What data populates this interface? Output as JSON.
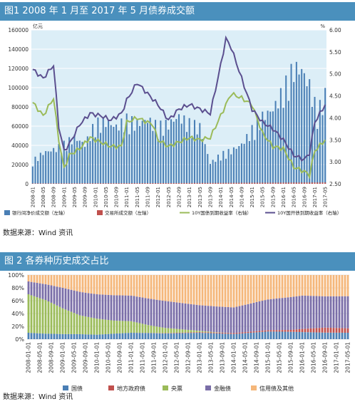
{
  "chart1": {
    "title": "图1  2008 年 1 月至 2017 年 5 月债券成交额",
    "left_unit": "亿元",
    "right_unit": "%",
    "source": "数据来源：Wind 资讯",
    "left_ticks": [
      "0",
      "20000",
      "40000",
      "60000",
      "80000",
      "100000",
      "120000",
      "140000",
      "160000"
    ],
    "right_ticks": [
      "2.50",
      "3.00",
      "3.50",
      "4.00",
      "4.50",
      "5.00",
      "5.50",
      "6.00"
    ],
    "x_ticks": [
      "2008-01",
      "2008-05",
      "2008-09",
      "2009-01",
      "2009-05",
      "2009-09",
      "2010-01",
      "2010-05",
      "2010-09",
      "2011-01",
      "2011-05",
      "2011-09",
      "2012-01",
      "2012-05",
      "2012-09",
      "2013-01",
      "2013-05",
      "2013-09",
      "2014-01",
      "2014-05",
      "2014-09",
      "2015-01",
      "2015-05",
      "2015-09",
      "2016-01",
      "2016-05",
      "2016-09",
      "2017-01",
      "2017-05"
    ],
    "legend": [
      "银行间净价成交额（左轴）",
      "交易所成交额（左轴）",
      "10Y国债到期收益率（右轴）",
      "10Y国开债到期收益率（右轴）"
    ],
    "colors": {
      "bank": "#4a7fb5",
      "exchange": "#c0504d",
      "gov": "#9bbb59",
      "cdb": "#5b4f8f",
      "grid": "#ffffff",
      "bg": "#dceef7"
    }
  },
  "chart2": {
    "title": "图 2 各券种历史成交占比",
    "source": "数据来源：Wind 资讯",
    "y_ticks": [
      "0%",
      "20%",
      "40%",
      "60%",
      "80%",
      "100%"
    ],
    "x_ticks": [
      "2008-01-01",
      "2008-05-01",
      "2008-09-01",
      "2009-01-01",
      "2009-05-01",
      "2009-09-01",
      "2010-01-01",
      "2010-05-01",
      "2010-09-01",
      "2011-01-01",
      "2011-05-01",
      "2011-09-01",
      "2012-01-01",
      "2012-05-01",
      "2012-09-01",
      "2013-01-01",
      "2013-05-01",
      "2013-09-01",
      "2014-01-01",
      "2014-05-01",
      "2014-09-01",
      "2015-01-01",
      "2015-05-01",
      "2015-09-01",
      "2016-01-01",
      "2016-05-01",
      "2016-09-01",
      "2017-01-01",
      "2017-05-01"
    ],
    "legend": [
      "国债",
      "地方政府债",
      "央票",
      "金融债",
      "信用债及其他"
    ],
    "colors": {
      "gov": "#4a7fb5",
      "local": "#c0504d",
      "cb": "#9bbb59",
      "fin": "#7a6ea8",
      "credit": "#f5b77a"
    }
  },
  "chart_data": [
    {
      "type": "bar",
      "title": "图1  2008 年 1 月至 2017 年 5 月债券成交额",
      "x_start": "2008-01",
      "x_end": "2017-05",
      "xlabel": "",
      "ylabel": "亿元",
      "ylim": [
        0,
        160000
      ],
      "y2label": "%",
      "y2lim": [
        2.5,
        6.0
      ],
      "series": [
        {
          "name": "银行间净价成交额（左轴）",
          "type": "bar",
          "axis": "left",
          "anchors": [
            [
              0,
              22000
            ],
            [
              4,
              30000
            ],
            [
              8,
              33000
            ],
            [
              12,
              38000
            ],
            [
              16,
              45000
            ],
            [
              20,
              38000
            ],
            [
              24,
              58000
            ],
            [
              28,
              60000
            ],
            [
              32,
              55000
            ],
            [
              36,
              62000
            ],
            [
              40,
              58000
            ],
            [
              44,
              62000
            ],
            [
              48,
              55000
            ],
            [
              52,
              58000
            ],
            [
              56,
              65000
            ],
            [
              60,
              58000
            ],
            [
              64,
              55000
            ],
            [
              68,
              20000
            ],
            [
              72,
              28000
            ],
            [
              76,
              32000
            ],
            [
              80,
              38000
            ],
            [
              84,
              52000
            ],
            [
              88,
              65000
            ],
            [
              92,
              72000
            ],
            [
              96,
              90000
            ],
            [
              100,
              112000
            ],
            [
              103,
              110000
            ],
            [
              106,
              95000
            ],
            [
              109,
              68000
            ],
            [
              112,
              86000
            ]
          ]
        },
        {
          "name": "交易所成交额（左轴）",
          "type": "bar",
          "axis": "left",
          "anchors": [
            [
              0,
              400
            ],
            [
              56,
              800
            ],
            [
              112,
              1500
            ]
          ]
        },
        {
          "name": "10Y国债到期收益率（右轴）",
          "type": "line",
          "axis": "right",
          "anchors": [
            [
              0,
              4.35
            ],
            [
              4,
              4.05
            ],
            [
              8,
              4.45
            ],
            [
              10,
              3.5
            ],
            [
              12,
              2.85
            ],
            [
              14,
              3.15
            ],
            [
              18,
              3.3
            ],
            [
              22,
              3.55
            ],
            [
              26,
              3.45
            ],
            [
              30,
              3.35
            ],
            [
              34,
              3.35
            ],
            [
              36,
              3.9
            ],
            [
              40,
              4.0
            ],
            [
              44,
              3.9
            ],
            [
              46,
              3.85
            ],
            [
              48,
              3.5
            ],
            [
              52,
              3.35
            ],
            [
              56,
              3.45
            ],
            [
              60,
              3.55
            ],
            [
              64,
              3.5
            ],
            [
              68,
              3.55
            ],
            [
              72,
              4.05
            ],
            [
              76,
              4.55
            ],
            [
              80,
              4.45
            ],
            [
              84,
              4.3
            ],
            [
              88,
              3.65
            ],
            [
              92,
              3.35
            ],
            [
              96,
              3.3
            ],
            [
              100,
              2.88
            ],
            [
              104,
              2.78
            ],
            [
              106,
              2.7
            ],
            [
              108,
              3.25
            ],
            [
              112,
              3.5
            ]
          ]
        },
        {
          "name": "10Y国开债到期收益率（右轴）",
          "type": "line",
          "axis": "right",
          "anchors": [
            [
              0,
              5.1
            ],
            [
              4,
              4.9
            ],
            [
              8,
              5.2
            ],
            [
              10,
              3.8
            ],
            [
              12,
              3.25
            ],
            [
              14,
              3.4
            ],
            [
              18,
              3.85
            ],
            [
              22,
              4.1
            ],
            [
              26,
              4.05
            ],
            [
              30,
              3.95
            ],
            [
              34,
              4.1
            ],
            [
              36,
              4.4
            ],
            [
              40,
              4.8
            ],
            [
              44,
              4.55
            ],
            [
              48,
              4.3
            ],
            [
              52,
              3.95
            ],
            [
              56,
              4.2
            ],
            [
              60,
              4.3
            ],
            [
              64,
              4.2
            ],
            [
              68,
              4.1
            ],
            [
              72,
              5.2
            ],
            [
              74,
              5.8
            ],
            [
              76,
              5.6
            ],
            [
              80,
              4.9
            ],
            [
              84,
              4.2
            ],
            [
              88,
              3.9
            ],
            [
              92,
              3.75
            ],
            [
              96,
              3.5
            ],
            [
              100,
              3.15
            ],
            [
              104,
              3.05
            ],
            [
              106,
              3.2
            ],
            [
              108,
              3.9
            ],
            [
              110,
              4.1
            ],
            [
              112,
              4.3
            ]
          ]
        }
      ]
    },
    {
      "type": "bar",
      "stacked": "percent",
      "title": "图 2 各券种历史成交占比",
      "x_start": "2008-01",
      "x_end": "2017-05",
      "xlabel": "",
      "ylabel": "",
      "ylim": [
        0,
        100
      ],
      "series": [
        {
          "name": "国债",
          "anchors": [
            [
              0,
              10
            ],
            [
              12,
              8
            ],
            [
              24,
              7
            ],
            [
              36,
              10
            ],
            [
              48,
              9
            ],
            [
              60,
              10
            ],
            [
              72,
              8
            ],
            [
              84,
              12
            ],
            [
              96,
              11
            ],
            [
              112,
              10
            ]
          ]
        },
        {
          "name": "地方政府债",
          "anchors": [
            [
              0,
              0
            ],
            [
              36,
              0
            ],
            [
              48,
              0.5
            ],
            [
              60,
              1
            ],
            [
              72,
              1.5
            ],
            [
              84,
              2
            ],
            [
              92,
              3
            ],
            [
              96,
              5
            ],
            [
              104,
              8
            ],
            [
              112,
              7
            ]
          ]
        },
        {
          "name": "央票",
          "anchors": [
            [
              0,
              60
            ],
            [
              6,
              55
            ],
            [
              12,
              40
            ],
            [
              18,
              28
            ],
            [
              24,
              25
            ],
            [
              30,
              20
            ],
            [
              36,
              18
            ],
            [
              42,
              12
            ],
            [
              48,
              8
            ],
            [
              54,
              5
            ],
            [
              60,
              2
            ],
            [
              66,
              0.5
            ],
            [
              72,
              0
            ],
            [
              112,
              0
            ]
          ]
        },
        {
          "name": "金融债",
          "anchors": [
            [
              0,
              20
            ],
            [
              12,
              32
            ],
            [
              24,
              38
            ],
            [
              36,
              40
            ],
            [
              48,
              42
            ],
            [
              60,
              40
            ],
            [
              72,
              40
            ],
            [
              84,
              48
            ],
            [
              96,
              52
            ],
            [
              104,
              50
            ],
            [
              112,
              50
            ]
          ]
        },
        {
          "name": "信用债及其他",
          "anchors": [
            [
              0,
              10
            ],
            [
              12,
              20
            ],
            [
              24,
              30
            ],
            [
              36,
              32
            ],
            [
              48,
              40.5
            ],
            [
              60,
              47
            ],
            [
              72,
              50.5
            ],
            [
              84,
              38
            ],
            [
              96,
              32
            ],
            [
              104,
              34
            ],
            [
              112,
              33
            ]
          ]
        }
      ]
    }
  ]
}
